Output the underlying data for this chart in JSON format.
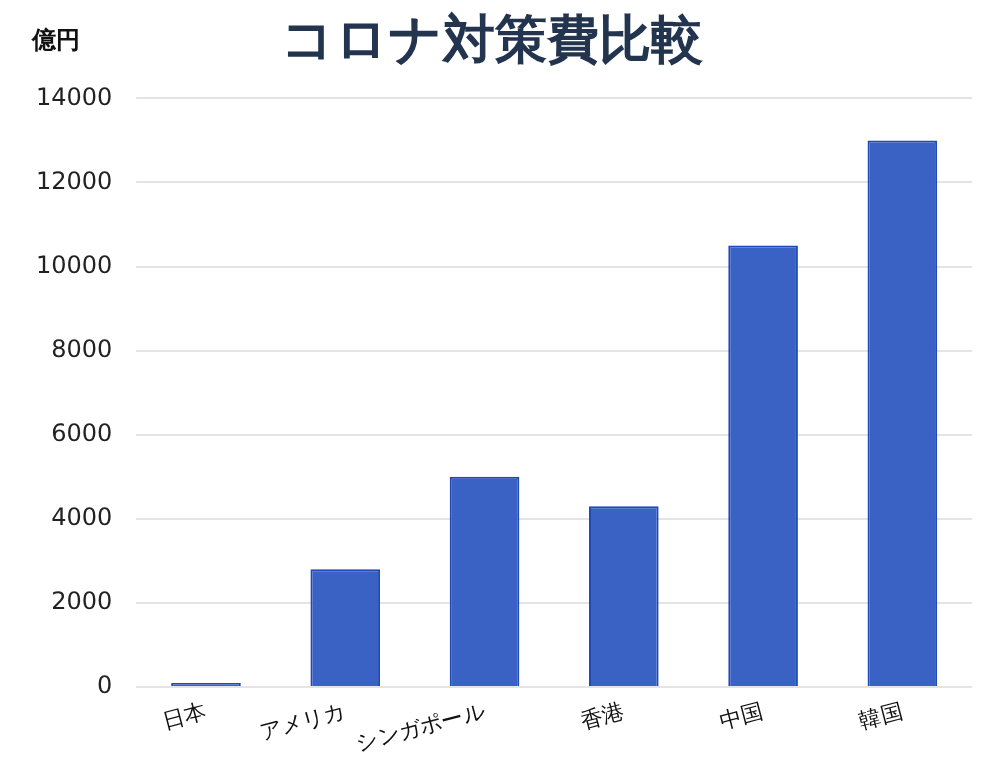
{
  "chart_data": {
    "type": "bar",
    "title": "コロナ対策費比較",
    "ylabel": "億円",
    "categories": [
      "日本",
      "アメリカ",
      "シンガポール",
      "香港",
      "中国",
      "韓国"
    ],
    "values": [
      100,
      2800,
      5000,
      4300,
      10500,
      13000
    ],
    "color": "#3a62c4",
    "ylim": [
      0,
      14000
    ],
    "yticks": [
      0,
      2000,
      4000,
      6000,
      8000,
      10000,
      12000,
      14000
    ],
    "grid": "y",
    "legend": false
  }
}
